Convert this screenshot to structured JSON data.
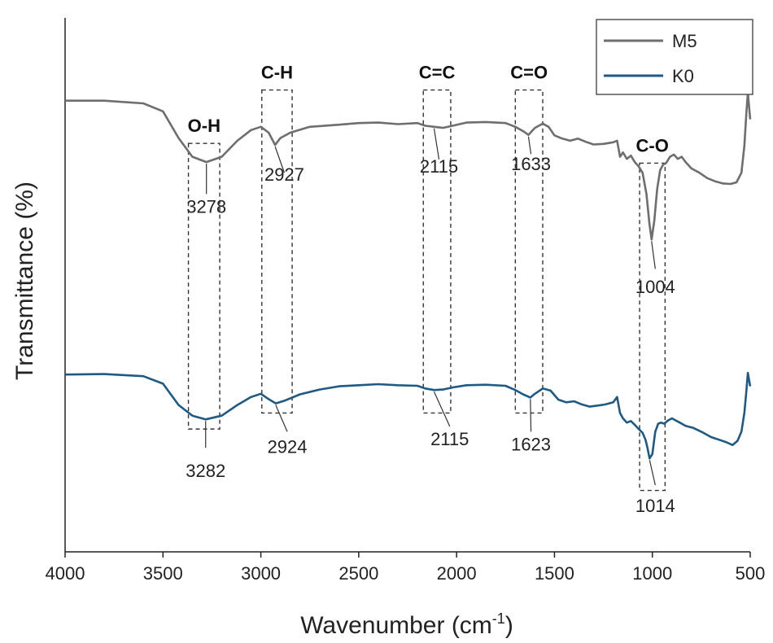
{
  "chart_data": {
    "type": "line",
    "title": "",
    "xlabel_prefix": "Wavenumber (cm",
    "xlabel_sup": "-1",
    "xlabel_suffix": ")",
    "ylabel": "Transmittance (%)",
    "xlim": [
      4000,
      500
    ],
    "ylim": [
      0,
      100
    ],
    "x_ticks": [
      4000,
      3500,
      3000,
      2500,
      2000,
      1500,
      1000,
      500
    ],
    "x_tick_labels": [
      "4000",
      "3500",
      "3000",
      "2500",
      "2000",
      "1500",
      "1000",
      "500"
    ],
    "legend": {
      "position": "top-right",
      "entries": [
        "M5",
        "K0"
      ]
    },
    "series": [
      {
        "name": "M5",
        "color": "#6e6e6e",
        "points": [
          [
            4000,
            84.5
          ],
          [
            3800,
            84.5
          ],
          [
            3600,
            84.0
          ],
          [
            3500,
            82.5
          ],
          [
            3420,
            77.5
          ],
          [
            3350,
            74.0
          ],
          [
            3278,
            73.0
          ],
          [
            3200,
            74.0
          ],
          [
            3120,
            77.0
          ],
          [
            3050,
            79.0
          ],
          [
            3000,
            79.6
          ],
          [
            2960,
            78.5
          ],
          [
            2927,
            76.2
          ],
          [
            2900,
            77.5
          ],
          [
            2850,
            78.5
          ],
          [
            2750,
            79.6
          ],
          [
            2600,
            80.0
          ],
          [
            2500,
            80.3
          ],
          [
            2400,
            80.4
          ],
          [
            2300,
            80.1
          ],
          [
            2200,
            80.3
          ],
          [
            2160,
            79.8
          ],
          [
            2115,
            79.6
          ],
          [
            2070,
            79.4
          ],
          [
            2020,
            79.8
          ],
          [
            1950,
            80.4
          ],
          [
            1850,
            80.5
          ],
          [
            1750,
            80.3
          ],
          [
            1700,
            79.6
          ],
          [
            1660,
            78.8
          ],
          [
            1633,
            78.1
          ],
          [
            1600,
            79.4
          ],
          [
            1560,
            80.2
          ],
          [
            1530,
            79.6
          ],
          [
            1500,
            78.0
          ],
          [
            1460,
            77.4
          ],
          [
            1420,
            77.0
          ],
          [
            1380,
            77.4
          ],
          [
            1340,
            76.8
          ],
          [
            1300,
            76.3
          ],
          [
            1250,
            76.4
          ],
          [
            1200,
            76.7
          ],
          [
            1180,
            77.0
          ],
          [
            1165,
            74.0
          ],
          [
            1150,
            74.8
          ],
          [
            1130,
            73.6
          ],
          [
            1110,
            74.2
          ],
          [
            1090,
            73.0
          ],
          [
            1070,
            72.2
          ],
          [
            1050,
            71.0
          ],
          [
            1030,
            67.0
          ],
          [
            1015,
            61.5
          ],
          [
            1004,
            58.5
          ],
          [
            990,
            62.0
          ],
          [
            975,
            68.0
          ],
          [
            960,
            71.5
          ],
          [
            945,
            72.5
          ],
          [
            930,
            72.8
          ],
          [
            910,
            74.0
          ],
          [
            890,
            74.4
          ],
          [
            870,
            73.6
          ],
          [
            850,
            74.0
          ],
          [
            830,
            73.0
          ],
          [
            800,
            71.8
          ],
          [
            760,
            71.0
          ],
          [
            720,
            70.0
          ],
          [
            680,
            69.4
          ],
          [
            640,
            69.0
          ],
          [
            600,
            68.9
          ],
          [
            570,
            69.2
          ],
          [
            545,
            71.0
          ],
          [
            530,
            76.0
          ],
          [
            520,
            82.0
          ],
          [
            512,
            86.0
          ],
          [
            505,
            83.0
          ],
          [
            500,
            81.0
          ]
        ]
      },
      {
        "name": "K0",
        "color": "#1f5a84",
        "points": [
          [
            4000,
            33.2
          ],
          [
            3800,
            33.3
          ],
          [
            3600,
            32.9
          ],
          [
            3500,
            31.5
          ],
          [
            3420,
            27.5
          ],
          [
            3350,
            25.5
          ],
          [
            3282,
            24.8
          ],
          [
            3200,
            25.5
          ],
          [
            3120,
            27.5
          ],
          [
            3050,
            29.0
          ],
          [
            3000,
            29.6
          ],
          [
            2960,
            28.6
          ],
          [
            2924,
            27.8
          ],
          [
            2880,
            28.3
          ],
          [
            2800,
            29.5
          ],
          [
            2700,
            30.4
          ],
          [
            2600,
            31.0
          ],
          [
            2500,
            31.2
          ],
          [
            2400,
            31.4
          ],
          [
            2300,
            31.2
          ],
          [
            2200,
            31.1
          ],
          [
            2160,
            30.6
          ],
          [
            2115,
            30.3
          ],
          [
            2070,
            30.4
          ],
          [
            2020,
            30.8
          ],
          [
            1950,
            31.2
          ],
          [
            1850,
            31.3
          ],
          [
            1750,
            31.1
          ],
          [
            1700,
            30.3
          ],
          [
            1660,
            29.5
          ],
          [
            1623,
            28.9
          ],
          [
            1600,
            29.6
          ],
          [
            1560,
            30.6
          ],
          [
            1520,
            30.2
          ],
          [
            1480,
            28.5
          ],
          [
            1440,
            28.0
          ],
          [
            1400,
            28.2
          ],
          [
            1360,
            27.6
          ],
          [
            1320,
            27.2
          ],
          [
            1280,
            27.4
          ],
          [
            1240,
            27.6
          ],
          [
            1200,
            28.0
          ],
          [
            1180,
            29.0
          ],
          [
            1165,
            26.0
          ],
          [
            1150,
            25.0
          ],
          [
            1130,
            24.2
          ],
          [
            1110,
            24.5
          ],
          [
            1090,
            23.8
          ],
          [
            1070,
            23.0
          ],
          [
            1050,
            22.3
          ],
          [
            1035,
            21.0
          ],
          [
            1025,
            19.5
          ],
          [
            1014,
            17.5
          ],
          [
            1000,
            18.3
          ],
          [
            985,
            22.5
          ],
          [
            970,
            24.0
          ],
          [
            955,
            24.2
          ],
          [
            940,
            24.0
          ],
          [
            920,
            24.6
          ],
          [
            900,
            25.0
          ],
          [
            880,
            24.6
          ],
          [
            860,
            24.2
          ],
          [
            830,
            23.6
          ],
          [
            790,
            23.2
          ],
          [
            750,
            22.5
          ],
          [
            700,
            21.5
          ],
          [
            660,
            21.0
          ],
          [
            620,
            20.5
          ],
          [
            590,
            20.0
          ],
          [
            565,
            20.8
          ],
          [
            545,
            22.5
          ],
          [
            530,
            26.0
          ],
          [
            520,
            30.0
          ],
          [
            512,
            33.5
          ],
          [
            505,
            32.0
          ],
          [
            500,
            31.0
          ]
        ]
      }
    ],
    "band_groups": [
      {
        "label": "O-H",
        "x_from": 3370,
        "x_to": 3210,
        "y_top": 76.5,
        "y_bottom": 23.0
      },
      {
        "label": "C-H",
        "x_from": 2995,
        "x_to": 2840,
        "y_top": 86.5,
        "y_bottom": 26.0
      },
      {
        "label": "C=C",
        "x_from": 2170,
        "x_to": 2030,
        "y_top": 86.5,
        "y_bottom": 26.0
      },
      {
        "label": "C=O",
        "x_from": 1700,
        "x_to": 1560,
        "y_top": 86.5,
        "y_bottom": 26.0
      },
      {
        "label": "C-O",
        "x_from": 1065,
        "x_to": 935,
        "y_top": 72.8,
        "y_bottom": 11.5
      }
    ],
    "peak_labels": [
      {
        "series": "M5",
        "label": "3278",
        "x": 3278,
        "y": 73.0,
        "text_x": 3278,
        "text_y": 63.5,
        "leader_to_y": 67.0
      },
      {
        "series": "M5",
        "label": "2927",
        "x": 2927,
        "y": 76.2,
        "text_x": 2880,
        "text_y": 69.5,
        "leader_to_y": 71.0
      },
      {
        "series": "M5",
        "label": "2115",
        "x": 2115,
        "y": 79.6,
        "text_x": 2090,
        "text_y": 71.0,
        "leader_to_y": 73.5
      },
      {
        "series": "M5",
        "label": "1633",
        "x": 1633,
        "y": 78.1,
        "text_x": 1620,
        "text_y": 71.5,
        "leader_to_y": 74.5
      },
      {
        "series": "M5",
        "label": "1004",
        "x": 1004,
        "y": 58.5,
        "text_x": 985,
        "text_y": 48.5,
        "leader_to_y": 53.0
      },
      {
        "series": "K0",
        "label": "3282",
        "x": 3282,
        "y": 24.8,
        "text_x": 3282,
        "text_y": 14.0,
        "leader_to_y": 19.5
      },
      {
        "series": "K0",
        "label": "2924",
        "x": 2924,
        "y": 27.8,
        "text_x": 2865,
        "text_y": 18.5,
        "leader_to_y": 22.5
      },
      {
        "series": "K0",
        "label": "2115",
        "x": 2115,
        "y": 30.3,
        "text_x": 2035,
        "text_y": 20.0,
        "leader_to_y": 23.5
      },
      {
        "series": "K0",
        "label": "1623",
        "x": 1623,
        "y": 28.9,
        "text_x": 1620,
        "text_y": 19.0,
        "leader_to_y": 22.5
      },
      {
        "series": "K0",
        "label": "1014",
        "x": 1014,
        "y": 17.5,
        "text_x": 985,
        "text_y": 7.5,
        "leader_to_y": 12.5
      }
    ]
  }
}
